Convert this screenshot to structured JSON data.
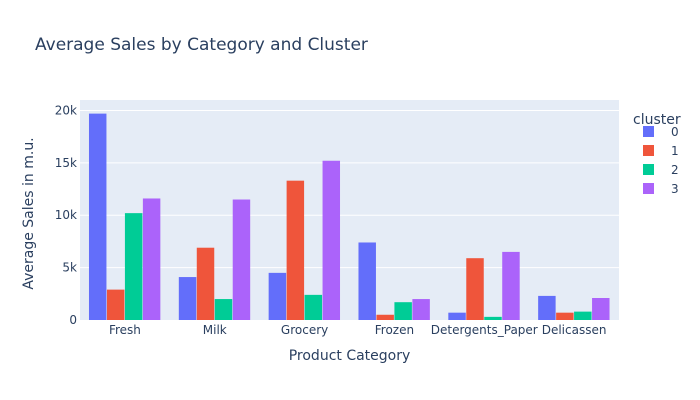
{
  "chart_data": {
    "type": "bar",
    "title": "Average Sales by Category and Cluster",
    "xlabel": "Product Category",
    "ylabel": "Average Sales in m.u.",
    "categories": [
      "Fresh",
      "Milk",
      "Grocery",
      "Frozen",
      "Detergents_Paper",
      "Delicassen"
    ],
    "ylim": [
      0,
      21000
    ],
    "yticks": [
      0,
      5000,
      10000,
      15000,
      20000
    ],
    "ytick_labels": [
      "0",
      "5k",
      "10k",
      "15k",
      "20k"
    ],
    "legend_title": "cluster",
    "legend_position": "right",
    "grid": true,
    "series": [
      {
        "name": "0",
        "color": "#636efa",
        "values": [
          19700,
          4100,
          4500,
          7400,
          700,
          2300
        ]
      },
      {
        "name": "1",
        "color": "#ef553b",
        "values": [
          2900,
          6900,
          13300,
          500,
          5900,
          700
        ]
      },
      {
        "name": "2",
        "color": "#00cc96",
        "values": [
          10200,
          2000,
          2400,
          1700,
          300,
          800
        ]
      },
      {
        "name": "3",
        "color": "#ab63fa",
        "values": [
          11600,
          11500,
          15200,
          2000,
          6500,
          2100
        ]
      }
    ]
  },
  "colors": {
    "plot_bg": "#e5ecf6",
    "grid": "#ffffff",
    "text": "#2a3f5f"
  }
}
